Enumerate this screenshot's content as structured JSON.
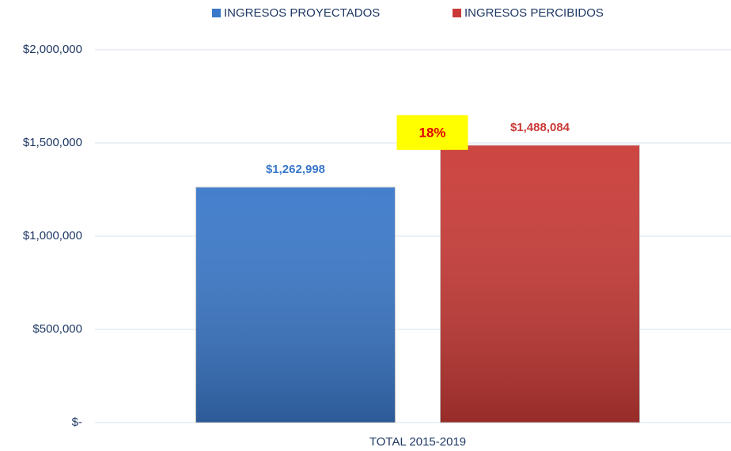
{
  "chart_data": {
    "type": "bar",
    "categories": [
      "TOTAL 2015-2019"
    ],
    "series": [
      {
        "name": "INGRESOS PROYECTADOS",
        "color": "#3a78c9",
        "values": [
          1262998
        ],
        "value_labels": [
          "$1,262,998"
        ]
      },
      {
        "name": "INGRESOS PERCIBIDOS",
        "color": "#c93a36",
        "values": [
          1488084
        ],
        "value_labels": [
          "$1,488,084"
        ]
      }
    ],
    "annotation": "18%",
    "ylim": [
      0,
      2000000
    ],
    "yticks": [
      {
        "value": 0,
        "label": "$-"
      },
      {
        "value": 500000,
        "label": "$500,000"
      },
      {
        "value": 1000000,
        "label": "$1,000,000"
      },
      {
        "value": 1500000,
        "label": "$1,500,000"
      },
      {
        "value": 2000000,
        "label": "$2,000,000"
      }
    ],
    "grid": true,
    "legend": "top"
  }
}
